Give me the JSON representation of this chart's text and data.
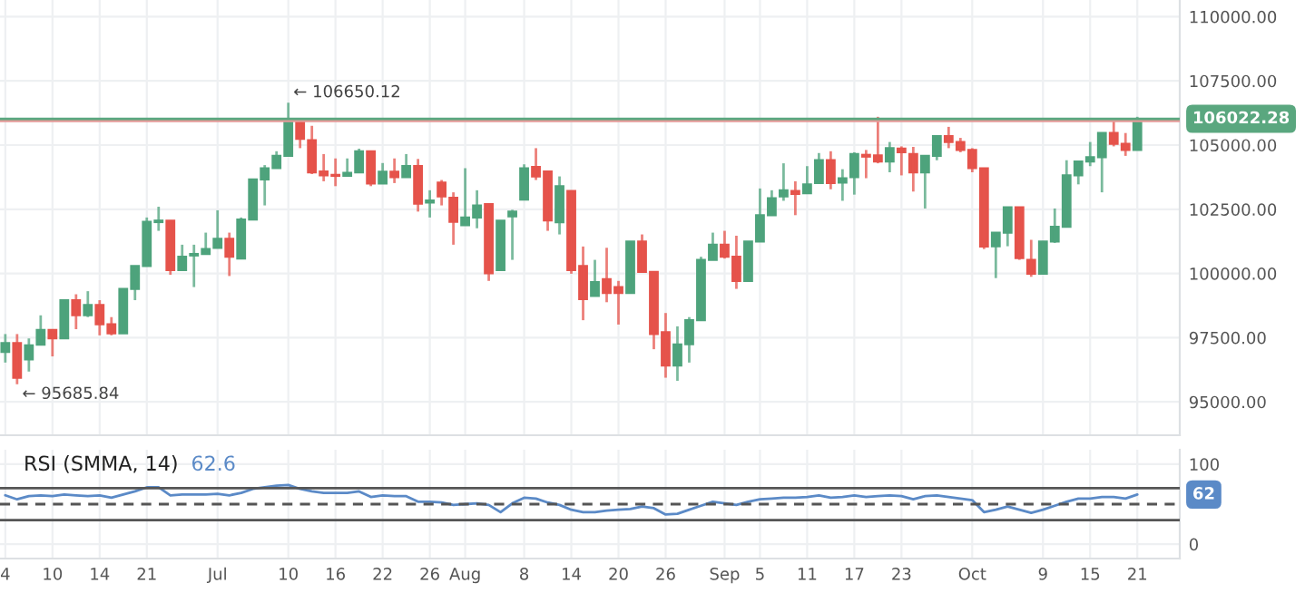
{
  "chart_data": [
    {
      "type": "candlestick",
      "categories": [
        null,
        null,
        null,
        null,
        null,
        null,
        null,
        null,
        null,
        null,
        null,
        null,
        null,
        null,
        null,
        null,
        null,
        null,
        null,
        null,
        null,
        null,
        null,
        null,
        null,
        null,
        null,
        null,
        null,
        null,
        null,
        null,
        null,
        null,
        null,
        null,
        null,
        null,
        null,
        null,
        null,
        null,
        null,
        null,
        null,
        null,
        null,
        null,
        null,
        null,
        null,
        null,
        null,
        null,
        null,
        null,
        null,
        null,
        null,
        null,
        null,
        null,
        null,
        null,
        null,
        null,
        null,
        null,
        null,
        null,
        null,
        null,
        null,
        null,
        null,
        null,
        null,
        null,
        null,
        null,
        null,
        null,
        null,
        null,
        null,
        null,
        null,
        null,
        null,
        null,
        null,
        null,
        null,
        null,
        null,
        null,
        null
      ],
      "ohlc": [
        [
          96940,
          97640,
          96530,
          97290
        ],
        [
          97290,
          97640,
          95685.84,
          95940
        ],
        [
          96650,
          97470,
          96180,
          97200
        ],
        [
          97230,
          98370,
          97230,
          97800
        ],
        [
          97800,
          97800,
          96770,
          97470
        ],
        [
          97470,
          98960,
          97470,
          98960
        ],
        [
          98960,
          99190,
          97830,
          98370
        ],
        [
          98370,
          99310,
          98300,
          98770
        ],
        [
          98770,
          98960,
          97590,
          98020
        ],
        [
          98020,
          98300,
          97590,
          97670
        ],
        [
          97670,
          99400,
          97670,
          99400
        ],
        [
          99400,
          100290,
          98960,
          100290
        ],
        [
          100290,
          102180,
          100290,
          102010
        ],
        [
          102000,
          102600,
          101660,
          102060
        ],
        [
          102060,
          102060,
          99950,
          100130
        ],
        [
          100130,
          101120,
          100130,
          100650
        ],
        [
          100700,
          101120,
          99470,
          100760
        ],
        [
          100760,
          101590,
          100760,
          100950
        ],
        [
          101000,
          102460,
          101000,
          101350
        ],
        [
          101350,
          101590,
          99900,
          100650
        ],
        [
          100580,
          102180,
          100580,
          102100
        ],
        [
          102100,
          103660,
          102100,
          103660
        ],
        [
          103660,
          104220,
          102650,
          104100
        ],
        [
          104100,
          104760,
          104100,
          104580
        ],
        [
          104580,
          106650.12,
          104580,
          105900
        ],
        [
          105900,
          105900,
          104880,
          105240
        ],
        [
          105190,
          105750,
          103870,
          103940
        ],
        [
          103970,
          104650,
          103590,
          103820
        ],
        [
          103840,
          104480,
          103400,
          103800
        ],
        [
          103800,
          104480,
          103800,
          103920
        ],
        [
          103940,
          104860,
          103940,
          104760
        ],
        [
          104760,
          104760,
          103400,
          103500
        ],
        [
          103500,
          104300,
          103500,
          103960
        ],
        [
          103960,
          104480,
          103520,
          103750
        ],
        [
          103750,
          104650,
          103750,
          104180
        ],
        [
          104180,
          104460,
          102410,
          102720
        ],
        [
          102760,
          103240,
          102180,
          102840
        ],
        [
          103540,
          103640,
          102650,
          103000
        ],
        [
          102950,
          103160,
          101120,
          102010
        ],
        [
          101880,
          104100,
          101880,
          102180
        ],
        [
          102180,
          103240,
          101760,
          102650
        ],
        [
          102700,
          102700,
          99710,
          100010
        ],
        [
          100130,
          102060,
          100130,
          102060
        ],
        [
          102220,
          102480,
          100530,
          102410
        ],
        [
          102880,
          104250,
          102880,
          104100
        ],
        [
          104150,
          104880,
          103640,
          103780
        ],
        [
          103970,
          103970,
          101660,
          102060
        ],
        [
          101990,
          103780,
          101520,
          103400
        ],
        [
          103210,
          103210,
          99990,
          100130
        ],
        [
          100290,
          101050,
          98180,
          99000
        ],
        [
          99120,
          100530,
          99120,
          99660
        ],
        [
          99780,
          101000,
          98880,
          99240
        ],
        [
          99470,
          99710,
          98010,
          99240
        ],
        [
          99240,
          101240,
          99240,
          101240
        ],
        [
          101240,
          101520,
          100060,
          100060
        ],
        [
          100060,
          100060,
          97050,
          97640
        ],
        [
          97710,
          98460,
          95940,
          96410
        ],
        [
          96410,
          97940,
          95820,
          97240
        ],
        [
          97240,
          98300,
          96530,
          98180
        ],
        [
          98180,
          100650,
          98180,
          100530
        ],
        [
          100530,
          101590,
          100530,
          101120
        ],
        [
          101120,
          101660,
          100580,
          100650
        ],
        [
          100650,
          101470,
          99400,
          99710
        ],
        [
          99710,
          101240,
          99710,
          101240
        ],
        [
          101240,
          103310,
          101240,
          102270
        ],
        [
          102270,
          103240,
          102270,
          102930
        ],
        [
          103000,
          104290,
          102830,
          103240
        ],
        [
          103210,
          103590,
          102270,
          103100
        ],
        [
          103120,
          104180,
          103120,
          103470
        ],
        [
          103520,
          104690,
          103520,
          104410
        ],
        [
          104410,
          104760,
          103280,
          103520
        ],
        [
          103540,
          104060,
          102830,
          103710
        ],
        [
          103750,
          104720,
          103070,
          104650
        ],
        [
          104620,
          104810,
          103710,
          104550
        ],
        [
          104600,
          106100,
          104290,
          104360
        ],
        [
          104360,
          105120,
          103940,
          104880
        ],
        [
          104860,
          104950,
          103820,
          104720
        ],
        [
          104650,
          104930,
          103190,
          103940
        ],
        [
          103940,
          104580,
          102530,
          104580
        ],
        [
          104580,
          105350,
          104410,
          105350
        ],
        [
          105350,
          105710,
          104880,
          105120
        ],
        [
          105120,
          105280,
          104720,
          104810
        ],
        [
          104810,
          104880,
          103940,
          104100
        ],
        [
          104100,
          104100,
          100950,
          101050
        ],
        [
          101060,
          101590,
          99820,
          101590
        ],
        [
          101590,
          102580,
          101060,
          102580
        ],
        [
          102580,
          102580,
          100530,
          100600
        ],
        [
          100530,
          101310,
          99870,
          99990
        ],
        [
          99990,
          101240,
          99990,
          101240
        ],
        [
          101240,
          102530,
          101190,
          101820
        ],
        [
          101820,
          104410,
          101820,
          103820
        ],
        [
          103820,
          104360,
          103470,
          104360
        ],
        [
          104360,
          105120,
          104180,
          104530
        ],
        [
          104530,
          105470,
          103160,
          105470
        ],
        [
          105470,
          105990,
          104950,
          105050
        ],
        [
          105050,
          105470,
          104580,
          104810
        ],
        [
          104810,
          106100,
          104810,
          106022.28
        ]
      ],
      "colors": [
        "#4ea37c",
        "#e5534b",
        "#4ea37c",
        "#4ea37c",
        "#e5534b",
        "#4ea37c",
        "#e5534b",
        "#4ea37c",
        "#e5534b",
        "#e5534b",
        "#4ea37c",
        "#4ea37c",
        "#4ea37c",
        "#4ea37c",
        "#e5534b",
        "#4ea37c",
        "#4ea37c",
        "#4ea37c",
        "#4ea37c",
        "#e5534b",
        "#4ea37c",
        "#4ea37c",
        "#4ea37c",
        "#4ea37c",
        "#4ea37c",
        "#e5534b",
        "#e5534b",
        "#e5534b",
        "#e5534b",
        "#4ea37c",
        "#4ea37c",
        "#e5534b",
        "#4ea37c",
        "#e5534b",
        "#4ea37c",
        "#e5534b",
        "#4ea37c",
        "#e5534b",
        "#e5534b",
        "#4ea37c",
        "#4ea37c",
        "#e5534b",
        "#4ea37c",
        "#4ea37c",
        "#4ea37c",
        "#e5534b",
        "#e5534b",
        "#4ea37c",
        "#e5534b",
        "#e5534b",
        "#4ea37c",
        "#e5534b",
        "#e5534b",
        "#4ea37c",
        "#e5534b",
        "#e5534b",
        "#e5534b",
        "#4ea37c",
        "#4ea37c",
        "#4ea37c",
        "#4ea37c",
        "#e5534b",
        "#e5534b",
        "#4ea37c",
        "#4ea37c",
        "#4ea37c",
        "#4ea37c",
        "#e5534b",
        "#4ea37c",
        "#4ea37c",
        "#e5534b",
        "#4ea37c",
        "#4ea37c",
        "#e5534b",
        "#e5534b",
        "#4ea37c",
        "#e5534b",
        "#e5534b",
        "#4ea37c",
        "#4ea37c",
        "#e5534b",
        "#e5534b",
        "#e5534b",
        "#e5534b",
        "#4ea37c",
        "#4ea37c",
        "#e5534b",
        "#e5534b",
        "#4ea37c",
        "#4ea37c",
        "#4ea37c",
        "#4ea37c",
        "#4ea37c",
        "#4ea37c",
        "#e5534b",
        "#e5534b",
        "#4ea37c"
      ],
      "ylim": [
        93700,
        110650
      ],
      "yticks": [
        {
          "value": 95000,
          "label": "95000.00"
        },
        {
          "value": 97500,
          "label": "97500.00"
        },
        {
          "value": 100000,
          "label": "100000.00"
        },
        {
          "value": 102500,
          "label": "102500.00"
        },
        {
          "value": 105000,
          "label": "105000.00"
        },
        {
          "value": 107500,
          "label": "107500.00"
        },
        {
          "value": 110000,
          "label": "110000.00"
        }
      ],
      "grid": true,
      "tick_labels": "y",
      "ref_lines": [
        {
          "axis": "y",
          "value": 105940,
          "color": "#e39a98"
        },
        {
          "axis": "y",
          "value": 106022.28,
          "label": "106022.28",
          "color": "#5aa77f"
        }
      ],
      "annotations": [
        "← 106650.12",
        "← 95685.84"
      ]
    },
    {
      "type": "line",
      "title": "RSI (SMMA, 14)",
      "subtitle": "62.6",
      "categories": [
        "4",
        null,
        null,
        null,
        "10",
        null,
        null,
        null,
        "14",
        null,
        null,
        null,
        "21",
        null,
        null,
        null,
        null,
        null,
        "Jul",
        null,
        null,
        null,
        null,
        null,
        "10",
        null,
        null,
        null,
        "16",
        null,
        null,
        null,
        "22",
        null,
        null,
        null,
        "26",
        null,
        null,
        "Aug",
        null,
        null,
        null,
        null,
        "8",
        null,
        null,
        null,
        "14",
        null,
        null,
        null,
        "20",
        null,
        null,
        null,
        "26",
        null,
        null,
        null,
        null,
        "Sep",
        null,
        null,
        "5",
        null,
        null,
        null,
        "11",
        null,
        null,
        null,
        "17",
        null,
        null,
        null,
        "23",
        null,
        null,
        null,
        null,
        null,
        "Oct",
        null,
        null,
        null,
        null,
        null,
        "9",
        null,
        null,
        null,
        "15",
        null,
        null,
        null,
        "21"
      ],
      "series": [
        {
          "color": "#5b8ac7",
          "values": [
            61,
            56,
            60,
            61,
            60,
            62,
            61,
            60,
            61,
            58,
            62,
            66,
            71,
            71,
            61,
            62,
            62,
            62,
            63,
            61,
            64,
            69,
            71,
            73,
            74,
            69,
            66,
            64,
            64,
            64,
            66,
            59,
            61,
            60,
            60,
            53,
            53,
            52,
            49,
            50,
            51,
            49,
            40,
            51,
            58,
            57,
            52,
            49,
            43,
            40,
            40,
            42,
            43,
            44,
            47,
            45,
            37,
            38,
            43,
            48,
            53,
            51,
            49,
            53,
            56,
            57,
            58,
            58,
            59,
            61,
            58,
            59,
            61,
            59,
            60,
            61,
            60,
            56,
            60,
            61,
            59,
            57,
            55,
            40,
            43,
            47,
            43,
            39,
            43,
            48,
            53,
            57,
            57,
            59,
            59,
            57,
            62
          ]
        }
      ],
      "ylim": [
        -18,
        118
      ],
      "yticks": [
        0,
        100
      ],
      "grid": true,
      "ref_lines": [
        {
          "axis": "y",
          "value": 70,
          "color": "#555555",
          "line_style": "solid"
        },
        {
          "axis": "y",
          "value": 50,
          "color": "#555555",
          "line_style": "dashed"
        },
        {
          "axis": "y",
          "value": 30,
          "color": "#555555",
          "line_style": "solid"
        }
      ],
      "annotations": [
        "62"
      ]
    }
  ]
}
